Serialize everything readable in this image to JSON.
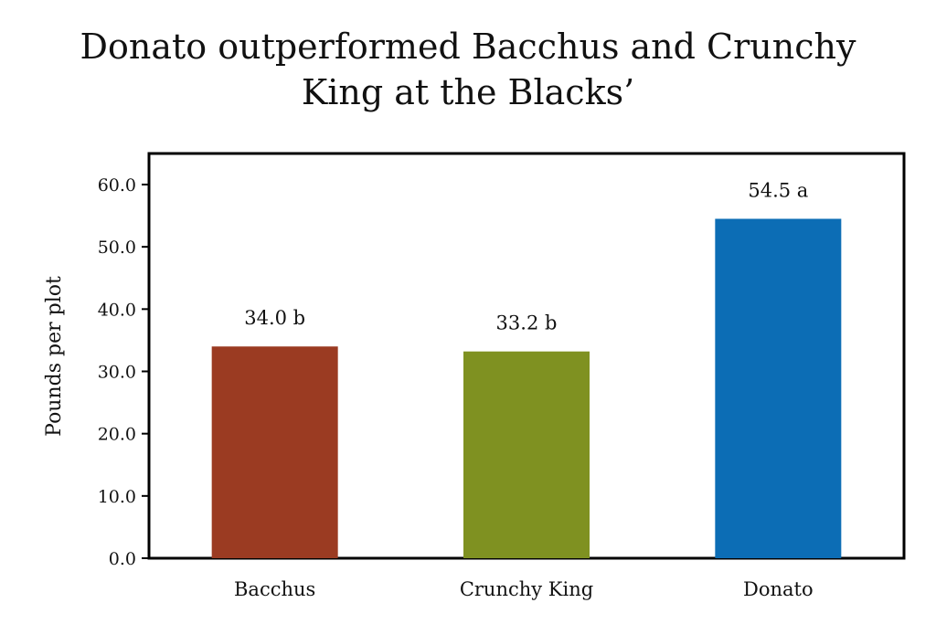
{
  "chart_data": {
    "type": "bar",
    "title_lines": [
      "Donato outperformed Bacchus and Crunchy",
      "King at the Blacks’"
    ],
    "ylabel": "Pounds per plot",
    "xlabel": "",
    "categories": [
      "Bacchus",
      "Crunchy King",
      "Donato"
    ],
    "values": [
      34.0,
      33.2,
      54.5
    ],
    "data_labels": [
      "34.0 b",
      "33.2 b",
      "54.5 a"
    ],
    "colors": [
      "#9b3b22",
      "#7f9121",
      "#0c6db5"
    ],
    "ylim": [
      0,
      60
    ],
    "yticks": [
      "0.0",
      "10.0",
      "20.0",
      "30.0",
      "40.0",
      "50.0",
      "60.0"
    ],
    "grid": false,
    "legend": "none"
  }
}
